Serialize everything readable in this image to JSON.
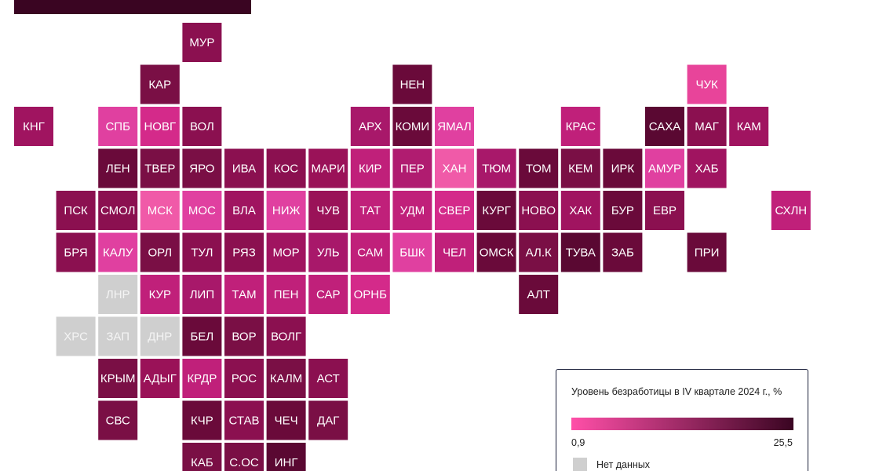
{
  "tiles": [
    {
      "label": "МУР",
      "color": "#8b1050"
    },
    {
      "label": "КАР",
      "color": "#7a0f45"
    },
    {
      "label": "НЕН",
      "color": "#6a0a3a"
    },
    {
      "label": "ЧУК",
      "color": "#e8449a"
    },
    {
      "label": "КНГ",
      "color": "#a01460"
    },
    {
      "label": "СПБ",
      "color": "#e040a0"
    },
    {
      "label": "НОВГ",
      "color": "#d42a8a"
    },
    {
      "label": "ВОЛ",
      "color": "#8b1050"
    },
    {
      "label": "АРХ",
      "color": "#a8186a"
    },
    {
      "label": "КОМИ",
      "color": "#6a0a3a"
    },
    {
      "label": "ЯМАЛ",
      "color": "#e040a0"
    },
    {
      "label": "КРАС",
      "color": "#c0207a"
    },
    {
      "label": "САХА",
      "color": "#5a0832"
    },
    {
      "label": "МАГ",
      "color": "#8b1050"
    },
    {
      "label": "КАМ",
      "color": "#a01460"
    },
    {
      "label": "ЛЕН",
      "color": "#6a0a3a"
    },
    {
      "label": "ТВЕР",
      "color": "#7a0f45"
    },
    {
      "label": "ЯРО",
      "color": "#7a0f45"
    },
    {
      "label": "ИВА",
      "color": "#8b1050"
    },
    {
      "label": "КОС",
      "color": "#8b1050"
    },
    {
      "label": "МАРИ",
      "color": "#9a1258"
    },
    {
      "label": "КИР",
      "color": "#c0207a"
    },
    {
      "label": "ПЕР",
      "color": "#b01c70"
    },
    {
      "label": "ХАН",
      "color": "#f05aa8"
    },
    {
      "label": "ТЮМ",
      "color": "#a8186a"
    },
    {
      "label": "ТОМ",
      "color": "#6a0a3a"
    },
    {
      "label": "КЕМ",
      "color": "#7a0f45"
    },
    {
      "label": "ИРК",
      "color": "#6a0a3a"
    },
    {
      "label": "АМУР",
      "color": "#e040a0"
    },
    {
      "label": "ХАБ",
      "color": "#a01460"
    },
    {
      "label": "ПСК",
      "color": "#8b1050"
    },
    {
      "label": "СМОЛ",
      "color": "#8b1050"
    },
    {
      "label": "МСК",
      "color": "#f05aa8"
    },
    {
      "label": "МОС",
      "color": "#e040a0"
    },
    {
      "label": "ВЛА",
      "color": "#a01460"
    },
    {
      "label": "НИЖ",
      "color": "#e040a0"
    },
    {
      "label": "ЧУВ",
      "color": "#9a1258"
    },
    {
      "label": "ТАТ",
      "color": "#c0207a"
    },
    {
      "label": "УДМ",
      "color": "#c0207a"
    },
    {
      "label": "СВЕР",
      "color": "#d42a8a"
    },
    {
      "label": "КУРГ",
      "color": "#6a0a3a"
    },
    {
      "label": "НОВО",
      "color": "#8b1050"
    },
    {
      "label": "ХАК",
      "color": "#a01460"
    },
    {
      "label": "БУР",
      "color": "#6a0a3a"
    },
    {
      "label": "ЕВР",
      "color": "#8b1050"
    },
    {
      "label": "СХЛН",
      "color": "#c0207a"
    },
    {
      "label": "БРЯ",
      "color": "#8b1050"
    },
    {
      "label": "КАЛУ",
      "color": "#e040a0"
    },
    {
      "label": "ОРЛ",
      "color": "#7a0f45"
    },
    {
      "label": "ТУЛ",
      "color": "#8b1050"
    },
    {
      "label": "РЯЗ",
      "color": "#8b1050"
    },
    {
      "label": "МОР",
      "color": "#a01460"
    },
    {
      "label": "УЛЬ",
      "color": "#a8186a"
    },
    {
      "label": "САМ",
      "color": "#c0207a"
    },
    {
      "label": "БШК",
      "color": "#e040a0"
    },
    {
      "label": "ЧЕЛ",
      "color": "#c0207a"
    },
    {
      "label": "ОМСК",
      "color": "#6a0a3a"
    },
    {
      "label": "АЛ.К",
      "color": "#7a0f45"
    },
    {
      "label": "ТУВА",
      "color": "#5a0832"
    },
    {
      "label": "ЗАБ",
      "color": "#6a0a3a"
    },
    {
      "label": "ПРИ",
      "color": "#6a0a3a"
    },
    {
      "label": "ЛНР",
      "color": "#cfcfcf"
    },
    {
      "label": "КУР",
      "color": "#c0207a"
    },
    {
      "label": "ЛИП",
      "color": "#a8186a"
    },
    {
      "label": "ТАМ",
      "color": "#c0207a"
    },
    {
      "label": "ПЕН",
      "color": "#c0207a"
    },
    {
      "label": "САР",
      "color": "#c0207a"
    },
    {
      "label": "ОРНБ",
      "color": "#d42a8a"
    },
    {
      "label": "АЛТ",
      "color": "#6a0a3a"
    },
    {
      "label": "ХРС",
      "color": "#cfcfcf"
    },
    {
      "label": "ЗАП",
      "color": "#cfcfcf"
    },
    {
      "label": "ДНР",
      "color": "#cfcfcf"
    },
    {
      "label": "БЕЛ",
      "color": "#6a0a3a"
    },
    {
      "label": "ВОР",
      "color": "#7a0f45"
    },
    {
      "label": "ВОЛГ",
      "color": "#8b1050"
    },
    {
      "label": "КРЫМ",
      "color": "#7a0f45"
    },
    {
      "label": "АДЫГ",
      "color": "#9a1258"
    },
    {
      "label": "КРДР",
      "color": "#c0207a"
    },
    {
      "label": "РОС",
      "color": "#8b1050"
    },
    {
      "label": "КАЛМ",
      "color": "#7a0f45"
    },
    {
      "label": "АСТ",
      "color": "#8b1050"
    },
    {
      "label": "СВС",
      "color": "#7a0f45"
    },
    {
      "label": "КЧР",
      "color": "#6a0a3a"
    },
    {
      "label": "СТАВ",
      "color": "#8b1050"
    },
    {
      "label": "ЧЕЧ",
      "color": "#6a0a3a"
    },
    {
      "label": "ДАГ",
      "color": "#7a0f45"
    },
    {
      "label": "КАБ",
      "color": "#7a0f45"
    },
    {
      "label": "С.ОС",
      "color": "#7a0f45"
    },
    {
      "label": "ИНГ",
      "color": "#5a0832"
    }
  ],
  "legend": {
    "title": "Уровень безработицы в IV квартале 2024 г., %",
    "min_label": "0,9",
    "max_label": "25,5",
    "min_color": "#ff4fa8",
    "max_color": "#3a0522",
    "no_data_label": "Нет данных",
    "no_data_color": "#cfcfcf"
  }
}
